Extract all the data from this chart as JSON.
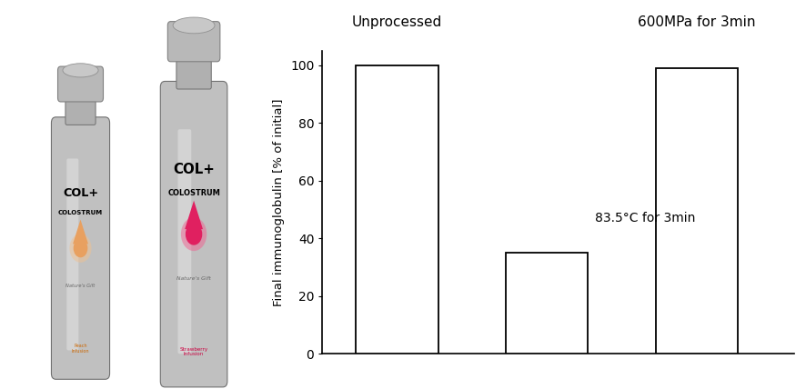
{
  "bar_values": [
    100,
    35,
    99
  ],
  "bar_colors": [
    "white",
    "white",
    "white"
  ],
  "bar_edgecolors": [
    "black",
    "black",
    "black"
  ],
  "ylabel": "Final immunoglobulin [% of initial]",
  "ylim": [
    0,
    105
  ],
  "yticks": [
    0,
    20,
    40,
    60,
    80,
    100
  ],
  "title_unprocessed": "Unprocessed",
  "title_hpp": "600MPa for 3min",
  "annotation_text": "83.5°C for 3min",
  "bar_width": 0.55,
  "bar_positions": [
    0,
    1,
    2
  ],
  "fig_bg": "white",
  "chart_bg": "white",
  "left_panel_bg": "white",
  "figsize": [
    8.86,
    4.28
  ],
  "dpi": 100,
  "bottle1_label1": "COL+",
  "bottle1_label2": "COLOSTRUM",
  "bottle1_drop_color": "#e8a060",
  "bottle1_drop_outline": "#f0c090",
  "bottle1_flavor": "Peach\nInfusion",
  "bottle1_flavor_color": "#cc6600",
  "bottle2_label1": "COL+",
  "bottle2_label2": "COLOSTRUM",
  "bottle2_drop_color": "#e02060",
  "bottle2_drop_outline": "#f06090",
  "bottle2_flavor": "Strawberry\nInfusion",
  "bottle2_flavor_color": "#cc0040",
  "natures_gift_color": "#666666"
}
